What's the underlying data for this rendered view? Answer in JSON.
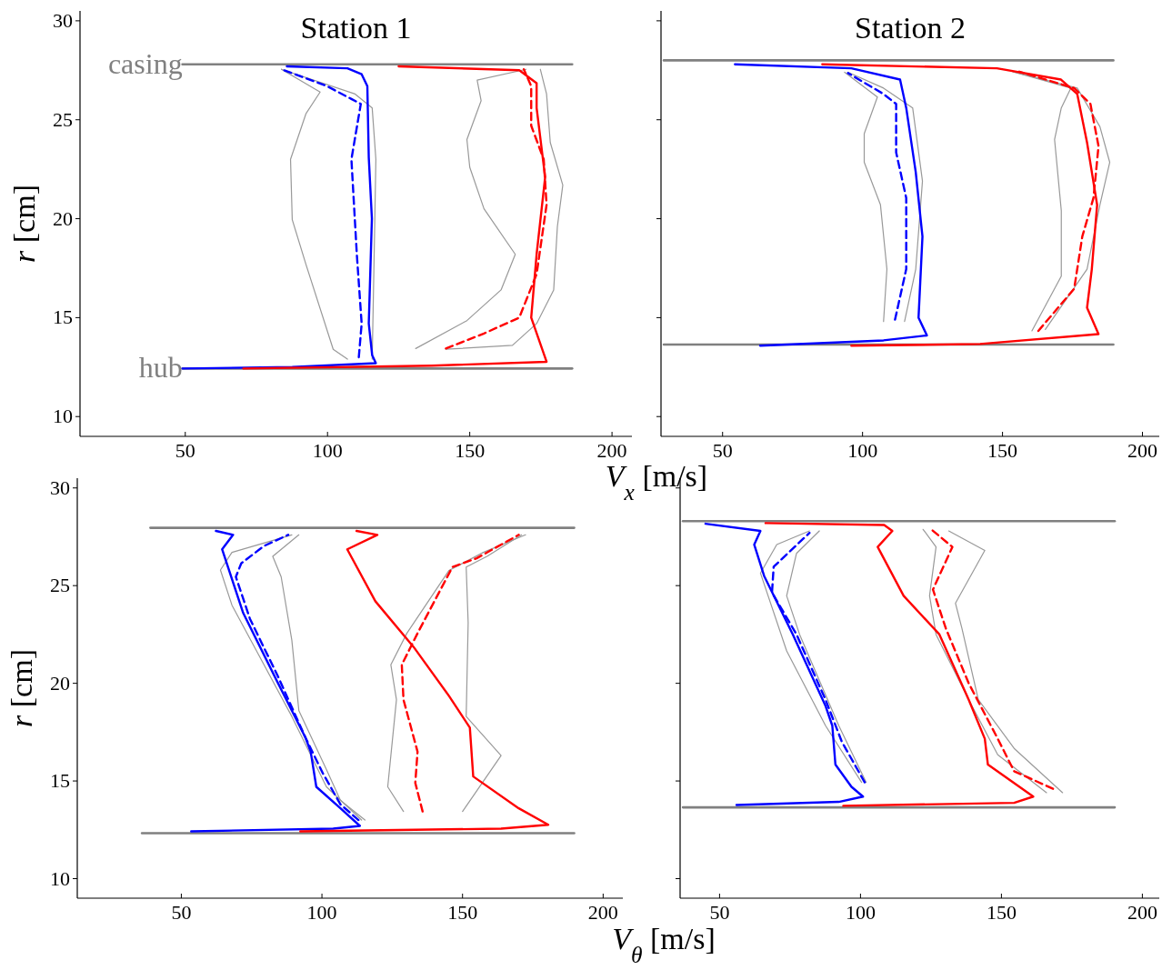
{
  "chart_data": [
    {
      "type": "line",
      "title": "Station 1",
      "xlabel": "V$_{x}$ [m/s]",
      "ylabel": "r [cm]",
      "xlim": [
        13,
        207
      ],
      "ylim": [
        9,
        30.5
      ],
      "xticks": [
        50,
        100,
        150,
        200
      ],
      "yticks": [
        10,
        15,
        20,
        25,
        30
      ],
      "annotations": [
        {
          "text": "casing",
          "x": 49,
          "y": 27.8
        },
        {
          "text": "hub",
          "x": 49,
          "y": 12.43
        }
      ],
      "series": [
        {
          "color": "#808080",
          "x": [
            49,
            186
          ],
          "values": [
            27.8,
            27.8
          ]
        },
        {
          "color": "#808080",
          "x": [
            49,
            186
          ],
          "values": [
            12.43,
            12.43
          ]
        },
        {
          "color": "#999999",
          "x": [
            83.8,
            97.4,
            92.4,
            87,
            87.6,
            92.4,
            102,
            107
          ],
          "values": [
            27.55,
            26.4,
            25.3,
            23,
            19.95,
            17.7,
            13.4,
            12.9
          ]
        },
        {
          "color": "#999999",
          "x": [
            83.8,
            109.7,
            115.7,
            117,
            116.4,
            115.7
          ],
          "values": [
            27.55,
            26.3,
            25.6,
            23,
            18.2,
            12.9
          ]
        },
        {
          "color": "#999999",
          "x": [
            169.8,
            152.6,
            154,
            149,
            150,
            155,
            166,
            161,
            149,
            131
          ],
          "values": [
            27.55,
            27,
            25.96,
            24,
            22.6,
            20.5,
            18.2,
            16.4,
            14.85,
            13.44
          ]
        },
        {
          "color": "#999999",
          "x": [
            174.8,
            177,
            178.3,
            182.7,
            180.8,
            179.5,
            173.5,
            165,
            141.6
          ],
          "values": [
            27.55,
            26.3,
            23.85,
            21.7,
            19.6,
            16.4,
            14.7,
            13.6,
            13.4
          ]
        },
        {
          "color": "#0000ff",
          "x": [
            49,
            87.6,
            117,
            115.7,
            114.5,
            115.6,
            114.5,
            114,
            112,
            107,
            85.7
          ],
          "values": [
            12.43,
            12.5,
            12.7,
            13.1,
            14.7,
            20,
            23.1,
            26.7,
            27.3,
            27.6,
            27.7
          ]
        },
        {
          "color": "#0000ff",
          "line_style": "dashed",
          "x": [
            111,
            112,
            110.3,
            108.4,
            111.7,
            108.4,
            99.8,
            83.8
          ],
          "values": [
            13,
            14.7,
            18.2,
            23,
            25.8,
            26.05,
            26.7,
            27.55
          ]
        },
        {
          "color": "#ff0000",
          "x": [
            70.4,
            136.6,
            177,
            171.6,
            173.5,
            176.5,
            173.5,
            173.5,
            167.4,
            125
          ],
          "values": [
            12.43,
            12.57,
            12.77,
            15,
            18.2,
            22.1,
            25.6,
            26.85,
            27.5,
            27.7
          ]
        },
        {
          "color": "#ff0000",
          "line_style": "dashed",
          "x": [
            141.6,
            155,
            167.4,
            173.5,
            177,
            176,
            171.6,
            171.6,
            169
          ],
          "values": [
            13.44,
            14.2,
            15,
            17.2,
            20.7,
            23,
            24.7,
            26.7,
            27.55
          ]
        }
      ]
    },
    {
      "type": "line",
      "title": "Station 2",
      "xlim": [
        28,
        206
      ],
      "ylim": [
        9,
        30.5
      ],
      "xticks": [
        50,
        100,
        150,
        200
      ],
      "yticks": [
        10,
        15,
        20,
        25,
        30
      ],
      "tick_labels": "x",
      "series": [
        {
          "color": "#808080",
          "x": [
            29,
            189.6
          ],
          "values": [
            28,
            28
          ]
        },
        {
          "color": "#808080",
          "x": [
            29,
            189.6
          ],
          "values": [
            13.64,
            13.64
          ]
        },
        {
          "color": "#999999",
          "x": [
            93.6,
            105.3,
            100.6,
            100.6,
            106.4,
            108.7,
            107.5
          ],
          "values": [
            27.4,
            26.15,
            24.3,
            22.85,
            20.7,
            17.45,
            14.8
          ]
        },
        {
          "color": "#999999",
          "x": [
            94.8,
            107.5,
            117.9,
            121.4,
            119,
            115
          ],
          "values": [
            27.4,
            26.6,
            25.6,
            21.9,
            17.45,
            14.8
          ]
        },
        {
          "color": "#999999",
          "x": [
            153.7,
            174.4,
            171,
            168.6,
            171,
            171,
            160.5
          ],
          "values": [
            27.43,
            26.6,
            25.6,
            24,
            20.4,
            17.1,
            14.33
          ]
        },
        {
          "color": "#999999",
          "x": [
            153.7,
            176.7,
            184.8,
            188.3,
            184.8,
            180.2,
            165.3
          ],
          "values": [
            27.43,
            26.6,
            24.65,
            22.85,
            20.7,
            17.45,
            14.4
          ]
        },
        {
          "color": "#0000ff",
          "x": [
            63.4,
            107.5,
            123,
            120,
            121.4,
            119,
            115.6,
            113.4,
            96,
            54.4
          ],
          "values": [
            13.58,
            13.85,
            14.1,
            15,
            19.1,
            22.35,
            25.6,
            27.03,
            27.6,
            27.8
          ]
        },
        {
          "color": "#0000ff",
          "line_style": "dashed",
          "x": [
            111.6,
            115.6,
            115.6,
            112,
            112,
            107.5,
            94.8
          ],
          "values": [
            14.9,
            17.45,
            21.05,
            23.35,
            25.8,
            26.3,
            27.36
          ]
        },
        {
          "color": "#ff0000",
          "x": [
            96,
            142,
            184.3,
            180.2,
            181.9,
            183.8,
            180.2,
            176.7,
            170.9,
            148,
            85.6
          ],
          "values": [
            13.58,
            13.67,
            14.17,
            15.5,
            17.45,
            20.7,
            23.85,
            26.3,
            27.03,
            27.6,
            27.8
          ]
        },
        {
          "color": "#ff0000",
          "line_style": "dashed",
          "x": [
            162.8,
            175.6,
            178.5,
            182.5,
            184.3,
            181.4,
            175.6,
            156
          ],
          "values": [
            14.33,
            16.46,
            19.1,
            21.05,
            23.67,
            25.8,
            26.6,
            27.43
          ]
        }
      ]
    },
    {
      "type": "line",
      "xlabel": "V$_{θ}$ [m/s]",
      "ylabel": "r [cm]",
      "xlim": [
        13,
        207
      ],
      "ylim": [
        9,
        30.5
      ],
      "xticks": [
        50,
        100,
        150,
        200
      ],
      "yticks": [
        10,
        15,
        20,
        25,
        30
      ],
      "series": [
        {
          "color": "#808080",
          "x": [
            39,
            189.7
          ],
          "values": [
            27.96,
            27.96
          ]
        },
        {
          "color": "#808080",
          "x": [
            36,
            189.7
          ],
          "values": [
            12.33,
            12.33
          ]
        },
        {
          "color": "#999999",
          "x": [
            89.3,
            68,
            63.9,
            68,
            89.3,
            101.6,
            114.1
          ],
          "values": [
            27.6,
            26.7,
            25.8,
            24,
            18.3,
            14.7,
            13
          ]
        },
        {
          "color": "#999999",
          "x": [
            91.8,
            82.5,
            85.5,
            89.3,
            91.8,
            101.6,
            106.6,
            115.3
          ],
          "values": [
            27.6,
            26.5,
            25.45,
            22.2,
            18.6,
            15.58,
            14,
            13
          ]
        },
        {
          "color": "#999999",
          "x": [
            172.4,
            157.4,
            145.2,
            130.2,
            124.5,
            126.5,
            123.4,
            129
          ],
          "values": [
            27.6,
            26.7,
            25.78,
            22.56,
            20.95,
            19.16,
            14.7,
            13.44
          ]
        },
        {
          "color": "#999999",
          "x": [
            171,
            158.7,
            151.3,
            152,
            151.3,
            163.7,
            150
          ],
          "values": [
            27.6,
            26.5,
            25.95,
            23.1,
            18.3,
            16.3,
            13.44
          ]
        },
        {
          "color": "#0000ff",
          "x": [
            53.5,
            104,
            113.5,
            106.6,
            98,
            96,
            94.2,
            84.2,
            72,
            64.5,
            68.4,
            62.3
          ],
          "values": [
            12.42,
            12.56,
            12.7,
            13.6,
            14.7,
            16.5,
            17.2,
            20.06,
            23.6,
            26.86,
            27.6,
            27.8
          ]
        },
        {
          "color": "#0000ff",
          "line_style": "dashed",
          "x": [
            113,
            106.6,
            100.3,
            94.2,
            84.2,
            74.4,
            69.4,
            71.3,
            79.4,
            88
          ],
          "values": [
            13,
            13.8,
            15.4,
            17.2,
            20.4,
            23.3,
            25.45,
            26.14,
            27.03,
            27.6
          ]
        },
        {
          "color": "#ff0000",
          "x": [
            92.3,
            163.7,
            180.5,
            170,
            153.8,
            152.6,
            145.2,
            132.6,
            119,
            109,
            119.7,
            112.3
          ],
          "values": [
            12.42,
            12.56,
            12.76,
            13.6,
            15.23,
            17.73,
            19.35,
            21.86,
            24.2,
            26.86,
            27.6,
            27.8
          ]
        },
        {
          "color": "#ff0000",
          "line_style": "dashed",
          "x": [
            135.8,
            133.2,
            134,
            129,
            128.4,
            134,
            146.4,
            155,
            170
          ],
          "values": [
            13.44,
            14.9,
            16.5,
            19.16,
            20.95,
            22.56,
            25.95,
            26.4,
            27.6
          ]
        }
      ]
    },
    {
      "type": "line",
      "xlim": [
        36,
        206
      ],
      "ylim": [
        9,
        30.5
      ],
      "xticks": [
        50,
        100,
        150,
        200
      ],
      "yticks": [
        10,
        15,
        20,
        25,
        30
      ],
      "tick_labels": "x",
      "series": [
        {
          "color": "#808080",
          "x": [
            37,
            190.2
          ],
          "values": [
            28.3,
            28.3
          ]
        },
        {
          "color": "#808080",
          "x": [
            37,
            190.2
          ],
          "values": [
            13.65,
            13.65
          ]
        },
        {
          "color": "#999999",
          "x": [
            81.9,
            70.3,
            64.5,
            73.8,
            87.6,
            100.4
          ],
          "values": [
            27.8,
            27.1,
            25.64,
            21.66,
            17.83,
            14.93
          ]
        },
        {
          "color": "#999999",
          "x": [
            85.4,
            77.3,
            73.8,
            78.4,
            92.3,
            102
          ],
          "values": [
            27.8,
            26.65,
            24.48,
            22.5,
            17.83,
            14.93
          ]
        },
        {
          "color": "#999999",
          "x": [
            122.2,
            126.8,
            124.5,
            126.8,
            138.4,
            148.7,
            166
          ],
          "values": [
            27.88,
            26.98,
            24.48,
            22.5,
            19.16,
            16.34,
            14.4
          ]
        },
        {
          "color": "#999999",
          "x": [
            131.3,
            144.1,
            133.7,
            136,
            141.8,
            154.5,
            171.7
          ],
          "values": [
            27.8,
            26.8,
            24.1,
            22.8,
            19.16,
            16.67,
            14.4
          ]
        },
        {
          "color": "#0000ff",
          "x": [
            56,
            92.3,
            100.9,
            96.8,
            91.1,
            90,
            87.6,
            76,
            65.8,
            62.3,
            64.5,
            45
          ],
          "values": [
            13.77,
            13.93,
            14.2,
            14.7,
            15.84,
            17.83,
            18.84,
            22.5,
            25.5,
            27.1,
            27.8,
            28.17
          ]
        },
        {
          "color": "#0000ff",
          "line_style": "dashed",
          "x": [
            101.5,
            93.4,
            87.6,
            77.3,
            68.6,
            69.2,
            81.9
          ],
          "values": [
            14.93,
            17,
            19.16,
            22.5,
            24.65,
            25.97,
            27.7
          ]
        },
        {
          "color": "#ff0000",
          "x": [
            93.9,
            154.5,
            161.3,
            145.2,
            144.1,
            138.4,
            128,
            115.3,
            106.1,
            111.3,
            108.4,
            66.3
          ],
          "values": [
            13.73,
            13.88,
            14.2,
            15.84,
            17.16,
            19.16,
            22.5,
            24.48,
            26.98,
            27.8,
            28.1,
            28.2
          ]
        },
        {
          "color": "#ff0000",
          "line_style": "dashed",
          "x": [
            168.3,
            154.5,
            148.7,
            138.4,
            130.3,
            125.7,
            132.6,
            125.1
          ],
          "values": [
            14.6,
            15.5,
            17.16,
            20,
            22.8,
            24.8,
            26.98,
            27.88
          ]
        }
      ]
    }
  ]
}
